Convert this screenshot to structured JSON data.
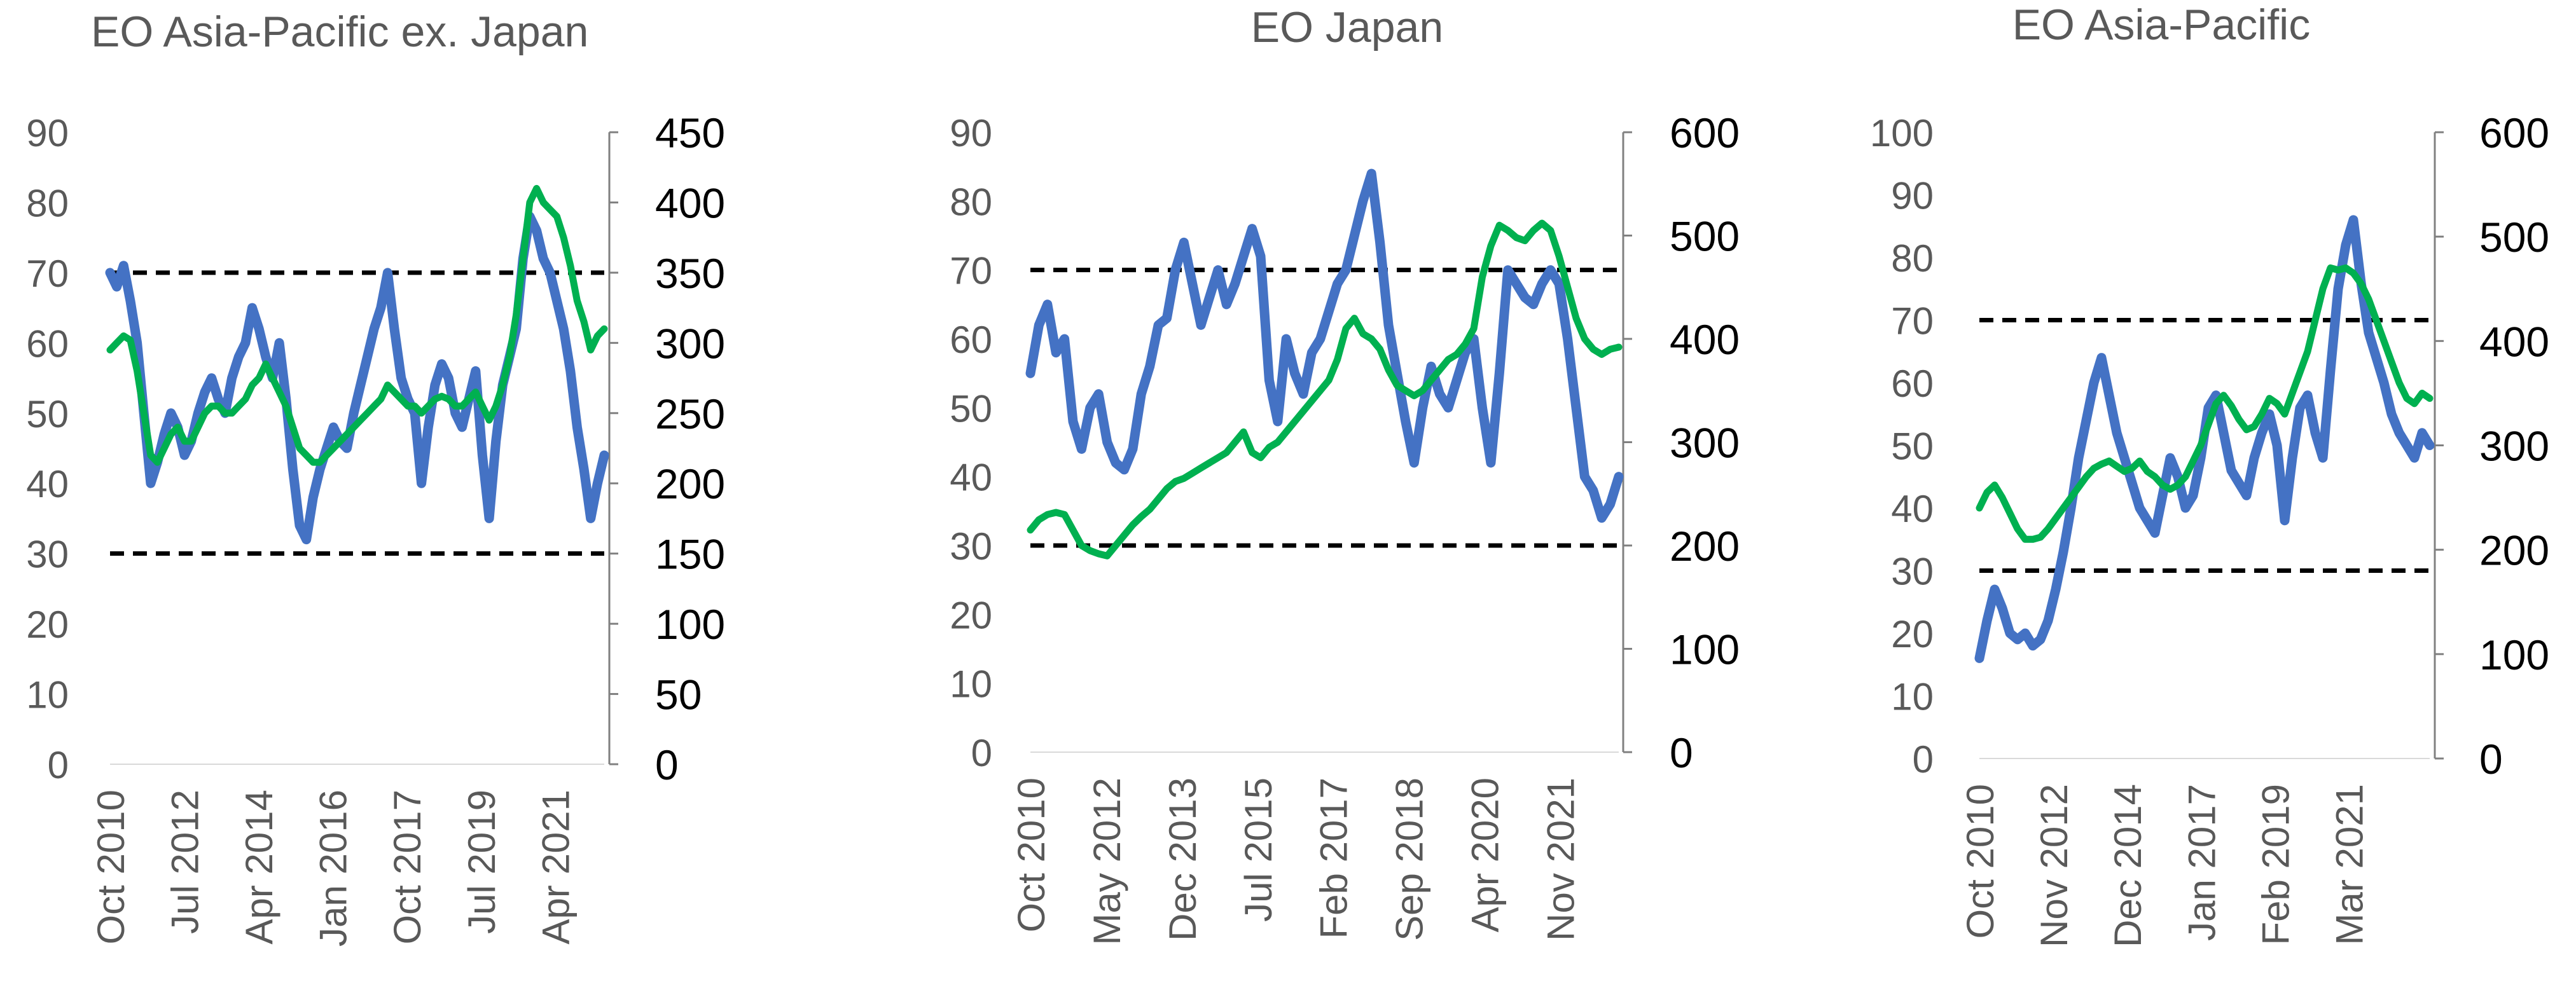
{
  "colors": {
    "primary": "#4472C4",
    "secondary": "#00B050",
    "threshold": "#000000",
    "axis": "#808080",
    "tick_text": "#595959",
    "title_text": "#595959"
  },
  "chart_data": [
    {
      "type": "line",
      "title": "EO Asia-Pacific ex. Japan",
      "left_axis": {
        "min": 0,
        "max": 90,
        "step": 10,
        "ticks": [
          "0",
          "10",
          "20",
          "30",
          "40",
          "50",
          "60",
          "70",
          "80",
          "90"
        ]
      },
      "right_axis": {
        "min": 0,
        "max": 450,
        "step": 50,
        "ticks": [
          "0",
          "50",
          "100",
          "150",
          "200",
          "250",
          "300",
          "350",
          "400",
          "450"
        ]
      },
      "x_labels": [
        "Oct 2010",
        "Jul 2012",
        "Apr 2014",
        "Jan 2016",
        "Oct 2017",
        "Jul 2019",
        "Apr 2021"
      ],
      "thresholds": [
        70,
        30
      ],
      "series": [
        {
          "name": "blue",
          "axis": "left",
          "color": "#4472C4",
          "values": [
            70,
            68,
            71,
            66,
            60,
            50,
            40,
            43,
            47,
            50,
            48,
            44,
            46,
            50,
            53,
            55,
            52,
            50,
            55,
            58,
            60,
            65,
            62,
            58,
            55,
            60,
            52,
            42,
            34,
            32,
            38,
            42,
            45,
            48,
            46,
            45,
            50,
            54,
            58,
            62,
            65,
            70,
            62,
            55,
            52,
            50,
            40,
            48,
            54,
            57,
            55,
            50,
            48,
            52,
            56,
            44,
            35,
            46,
            54,
            58,
            62,
            72,
            78,
            76,
            72,
            70,
            66,
            62,
            56,
            48,
            42,
            35,
            40,
            44
          ]
        },
        {
          "name": "green",
          "axis": "right",
          "color": "#00B050",
          "values": [
            295,
            300,
            305,
            302,
            280,
            250,
            220,
            215,
            225,
            235,
            240,
            230,
            230,
            240,
            250,
            255,
            255,
            250,
            250,
            255,
            260,
            270,
            275,
            285,
            275,
            265,
            255,
            240,
            225,
            220,
            215,
            215,
            220,
            225,
            230,
            235,
            240,
            245,
            250,
            255,
            260,
            270,
            265,
            260,
            255,
            255,
            250,
            255,
            260,
            262,
            260,
            255,
            255,
            260,
            265,
            255,
            245,
            255,
            270,
            290,
            320,
            360,
            400,
            410,
            400,
            395,
            390,
            375,
            355,
            330,
            315,
            295,
            305,
            310
          ]
        }
      ]
    },
    {
      "type": "line",
      "title": "EO Japan",
      "left_axis": {
        "min": 0,
        "max": 90,
        "step": 10,
        "ticks": [
          "0",
          "10",
          "20",
          "30",
          "40",
          "50",
          "60",
          "70",
          "80",
          "90"
        ]
      },
      "right_axis": {
        "min": 0,
        "max": 600,
        "step": 100,
        "ticks": [
          "0",
          "100",
          "200",
          "300",
          "400",
          "500",
          "600"
        ]
      },
      "x_labels": [
        "Oct 2010",
        "May 2012",
        "Dec 2013",
        "Jul 2015",
        "Feb 2017",
        "Sep 2018",
        "Apr 2020",
        "Nov 2021"
      ],
      "thresholds": [
        70,
        30
      ],
      "series": [
        {
          "name": "blue",
          "axis": "left",
          "color": "#4472C4",
          "values": [
            55,
            62,
            65,
            58,
            60,
            48,
            44,
            50,
            52,
            45,
            42,
            41,
            44,
            52,
            56,
            62,
            63,
            70,
            74,
            68,
            62,
            66,
            70,
            65,
            68,
            72,
            76,
            72,
            54,
            48,
            60,
            55,
            52,
            58,
            60,
            64,
            68,
            70,
            75,
            80,
            84,
            74,
            62,
            55,
            48,
            42,
            50,
            56,
            52,
            50,
            54,
            58,
            60,
            50,
            42,
            55,
            70,
            68,
            66,
            65,
            68,
            70,
            68,
            60,
            50,
            40,
            38,
            34,
            36,
            40
          ]
        },
        {
          "name": "green",
          "axis": "right",
          "color": "#00B050",
          "values": [
            215,
            225,
            230,
            232,
            230,
            215,
            200,
            195,
            192,
            190,
            200,
            210,
            220,
            228,
            235,
            245,
            255,
            262,
            265,
            270,
            275,
            280,
            285,
            290,
            300,
            310,
            290,
            285,
            295,
            300,
            310,
            320,
            330,
            340,
            350,
            360,
            380,
            410,
            420,
            405,
            400,
            390,
            370,
            355,
            350,
            345,
            350,
            360,
            370,
            380,
            385,
            395,
            410,
            460,
            490,
            510,
            505,
            498,
            495,
            505,
            512,
            505,
            480,
            450,
            420,
            400,
            390,
            385,
            390,
            392
          ]
        }
      ]
    },
    {
      "type": "line",
      "title": "EO Asia-Pacific",
      "left_axis": {
        "min": 0,
        "max": 100,
        "step": 10,
        "ticks": [
          "0",
          "10",
          "20",
          "30",
          "40",
          "50",
          "60",
          "70",
          "80",
          "90",
          "100"
        ]
      },
      "right_axis": {
        "min": 0,
        "max": 600,
        "step": 100,
        "ticks": [
          "0",
          "100",
          "200",
          "300",
          "400",
          "500",
          "600"
        ]
      },
      "x_labels": [
        "Oct 2010",
        "Nov 2012",
        "Dec 2014",
        "Jan 2017",
        "Feb 2019",
        "Mar 2021"
      ],
      "thresholds": [
        70,
        30
      ],
      "series": [
        {
          "name": "blue",
          "axis": "left",
          "color": "#4472C4",
          "values": [
            16,
            22,
            27,
            24,
            20,
            19,
            20,
            18,
            19,
            22,
            27,
            33,
            40,
            48,
            54,
            60,
            64,
            58,
            52,
            48,
            44,
            40,
            38,
            36,
            42,
            48,
            45,
            40,
            42,
            48,
            56,
            58,
            52,
            46,
            44,
            42,
            48,
            52,
            55,
            50,
            38,
            48,
            56,
            58,
            52,
            48,
            62,
            75,
            82,
            86,
            76,
            68,
            64,
            60,
            55,
            52,
            50,
            48,
            52,
            50
          ]
        },
        {
          "name": "green",
          "axis": "right",
          "color": "#00B050",
          "values": [
            240,
            255,
            262,
            250,
            235,
            220,
            210,
            210,
            212,
            220,
            230,
            240,
            250,
            260,
            270,
            278,
            282,
            285,
            280,
            275,
            278,
            285,
            275,
            270,
            262,
            258,
            262,
            270,
            285,
            300,
            320,
            340,
            348,
            338,
            325,
            315,
            318,
            330,
            345,
            340,
            330,
            350,
            370,
            390,
            420,
            450,
            470,
            468,
            470,
            465,
            455,
            440,
            420,
            400,
            380,
            360,
            345,
            340,
            350,
            345
          ]
        }
      ]
    }
  ]
}
